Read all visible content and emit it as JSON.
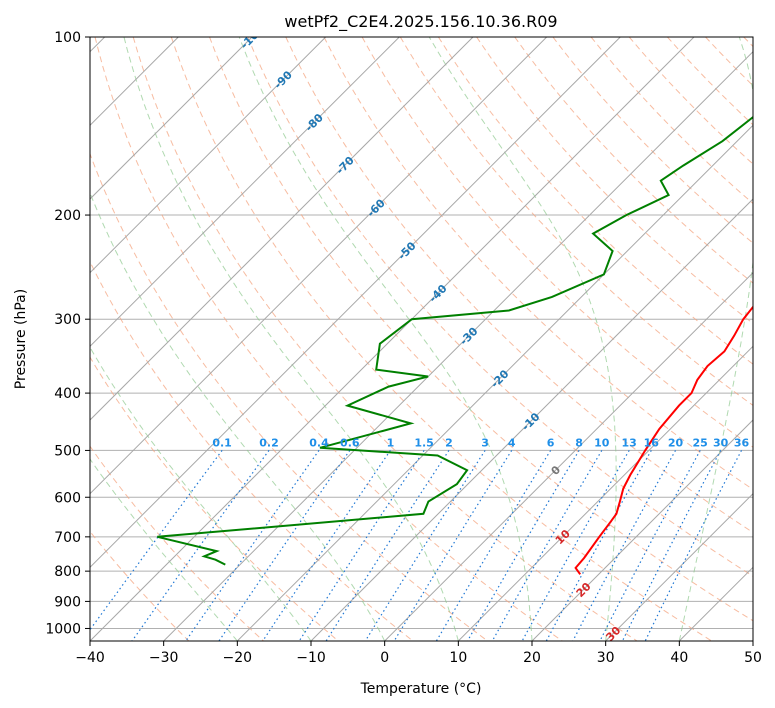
{
  "chart_data": {
    "type": "line",
    "title": "wetPf2_C2E4.2025.156.10.36.R09",
    "xlabel": "Temperature (°C)",
    "ylabel": "Pressure (hPa)",
    "xlim": [
      -40,
      50
    ],
    "ylim": [
      1050,
      100
    ],
    "y_scale": "log",
    "x_ticks": [
      -40,
      -30,
      -20,
      -10,
      0,
      10,
      20,
      30,
      40,
      50
    ],
    "y_ticks": [
      100,
      200,
      300,
      400,
      500,
      600,
      700,
      800,
      900,
      1000
    ],
    "grid": true,
    "isotherm_labels": [
      {
        "value": -100,
        "text": "-100"
      },
      {
        "value": -90,
        "text": "-90"
      },
      {
        "value": -80,
        "text": "-80"
      },
      {
        "value": -70,
        "text": "-70"
      },
      {
        "value": -60,
        "text": "-60"
      },
      {
        "value": -50,
        "text": "-50"
      },
      {
        "value": -40,
        "text": "-40"
      },
      {
        "value": -30,
        "text": "-30"
      },
      {
        "value": -20,
        "text": "-20"
      },
      {
        "value": -10,
        "text": "-10"
      },
      {
        "value": 0,
        "text": "0"
      },
      {
        "value": 10,
        "text": "10"
      },
      {
        "value": 20,
        "text": "20"
      },
      {
        "value": 30,
        "text": "30"
      },
      {
        "value": 40,
        "text": "40"
      }
    ],
    "mixing_ratio_labels": [
      "0.1",
      "0.2",
      "0.4",
      "0.6",
      "1",
      "1.5",
      "2",
      "3",
      "4",
      "6",
      "8",
      "10",
      "13",
      "16",
      "20",
      "25",
      "30",
      "36"
    ],
    "series": [
      {
        "color": "#ff0000",
        "points": [
          {
            "p": 810,
            "t": 17.5
          },
          {
            "p": 790,
            "t": 16.0
          },
          {
            "p": 760,
            "t": 15.8
          },
          {
            "p": 700,
            "t": 15.0
          },
          {
            "p": 660,
            "t": 14.5
          },
          {
            "p": 640,
            "t": 14.2
          },
          {
            "p": 610,
            "t": 13.0
          },
          {
            "p": 580,
            "t": 11.7
          },
          {
            "p": 550,
            "t": 10.8
          },
          {
            "p": 500,
            "t": 9.5
          },
          {
            "p": 460,
            "t": 8.5
          },
          {
            "p": 420,
            "t": 8.0
          },
          {
            "p": 400,
            "t": 8.0
          },
          {
            "p": 380,
            "t": 7.0
          },
          {
            "p": 360,
            "t": 6.5
          },
          {
            "p": 340,
            "t": 6.8
          },
          {
            "p": 320,
            "t": 6.0
          },
          {
            "p": 300,
            "t": 5.0
          },
          {
            "p": 280,
            "t": 4.5
          },
          {
            "p": 260,
            "t": 5.0
          },
          {
            "p": 245,
            "t": 6.3
          },
          {
            "p": 230,
            "t": 7.2
          },
          {
            "p": 210,
            "t": 7.5
          },
          {
            "p": 190,
            "t": 7.5
          },
          {
            "p": 175,
            "t": 8.0
          },
          {
            "p": 160,
            "t": 7.5
          },
          {
            "p": 145,
            "t": 6.5
          },
          {
            "p": 130,
            "t": 5.5
          },
          {
            "p": 120,
            "t": 5.8
          },
          {
            "p": 110,
            "t": 6.2
          },
          {
            "p": 100,
            "t": 6.7
          }
        ]
      },
      {
        "color": "#008000",
        "points": [
          {
            "p": 780,
            "t": -32
          },
          {
            "p": 765,
            "t": -34
          },
          {
            "p": 755,
            "t": -36
          },
          {
            "p": 740,
            "t": -35
          },
          {
            "p": 700,
            "t": -45
          },
          {
            "p": 640,
            "t": -12
          },
          {
            "p": 610,
            "t": -13
          },
          {
            "p": 570,
            "t": -11.5
          },
          {
            "p": 540,
            "t": -12
          },
          {
            "p": 510,
            "t": -18
          },
          {
            "p": 495,
            "t": -35
          },
          {
            "p": 450,
            "t": -26
          },
          {
            "p": 420,
            "t": -37
          },
          {
            "p": 390,
            "t": -34
          },
          {
            "p": 375,
            "t": -30
          },
          {
            "p": 365,
            "t": -38
          },
          {
            "p": 330,
            "t": -41
          },
          {
            "p": 300,
            "t": -40
          },
          {
            "p": 290,
            "t": -28
          },
          {
            "p": 275,
            "t": -24
          },
          {
            "p": 252,
            "t": -20
          },
          {
            "p": 230,
            "t": -22
          },
          {
            "p": 215,
            "t": -27
          },
          {
            "p": 200,
            "t": -25
          },
          {
            "p": 185,
            "t": -22
          },
          {
            "p": 175,
            "t": -25
          },
          {
            "p": 165,
            "t": -24
          },
          {
            "p": 150,
            "t": -22
          },
          {
            "p": 135,
            "t": -21
          },
          {
            "p": 120,
            "t": -24
          },
          {
            "p": 110,
            "t": -25
          },
          {
            "p": 100,
            "t": -26
          }
        ]
      }
    ]
  }
}
